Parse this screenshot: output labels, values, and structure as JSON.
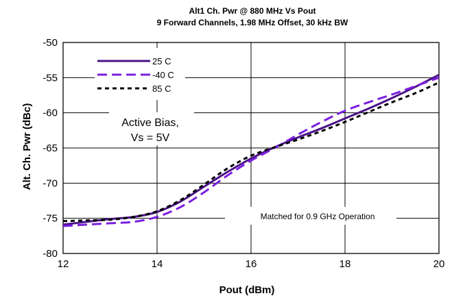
{
  "chart_data": {
    "type": "line",
    "title": "Alt1 Ch. Pwr @ 880 MHz Vs Pout",
    "subtitle": "9 Forward Channels, 1.98 MHz Offset, 30   kHz BW",
    "xlabel": "Pout (dBm)",
    "ylabel": "Alt. Ch. Pwr (dBc)",
    "xlim": [
      12,
      20
    ],
    "ylim": [
      -80,
      -50
    ],
    "x_ticks": [
      12,
      14,
      16,
      18,
      20
    ],
    "y_ticks": [
      -50,
      -55,
      -60,
      -65,
      -70,
      -75,
      -80
    ],
    "grid": true,
    "legend_position": "top-left",
    "series": [
      {
        "name": "25 C",
        "color": "#4b1287",
        "dash": "solid",
        "x": [
          12,
          12.5,
          13,
          13.5,
          14,
          14.5,
          15,
          15.5,
          16,
          16.5,
          17,
          17.5,
          18,
          18.5,
          19,
          19.5,
          20
        ],
        "y": [
          -75.9,
          -75.5,
          -75.1,
          -74.8,
          -74.1,
          -72.6,
          -70.5,
          -68.4,
          -66.5,
          -64.9,
          -63.5,
          -62.2,
          -60.8,
          -59.4,
          -57.9,
          -56.3,
          -54.6
        ]
      },
      {
        "name": "-40 C",
        "color": "#7a1ee0",
        "dash": "long-dash",
        "x": [
          12,
          12.5,
          13,
          13.5,
          14,
          14.5,
          15,
          15.5,
          16,
          16.5,
          17,
          17.5,
          18,
          18.5,
          19,
          19.5,
          20
        ],
        "y": [
          -76.1,
          -75.9,
          -75.7,
          -75.5,
          -74.8,
          -73.4,
          -71.3,
          -68.9,
          -66.8,
          -65.0,
          -63.1,
          -61.3,
          -59.7,
          -58.5,
          -57.4,
          -56.2,
          -55.0
        ]
      },
      {
        "name": "85 C",
        "color": "#000000",
        "dash": "short-dash",
        "x": [
          12,
          12.5,
          13,
          13.5,
          14,
          14.5,
          15,
          15.5,
          16,
          16.5,
          17,
          17.5,
          18,
          18.5,
          19,
          19.5,
          20
        ],
        "y": [
          -75.4,
          -75.3,
          -75.2,
          -74.8,
          -74.0,
          -72.4,
          -70.2,
          -67.9,
          -66.1,
          -64.9,
          -63.8,
          -62.6,
          -61.3,
          -59.9,
          -58.5,
          -57.2,
          -55.7
        ]
      }
    ],
    "annotations": [
      {
        "text_lines": [
          "Active Bias,",
          "Vs = 5V"
        ],
        "x": 14,
        "y": -62.5
      },
      {
        "text": "Matched for 0.9 GHz Operation",
        "x": 17.1,
        "y": -74.7
      }
    ]
  }
}
